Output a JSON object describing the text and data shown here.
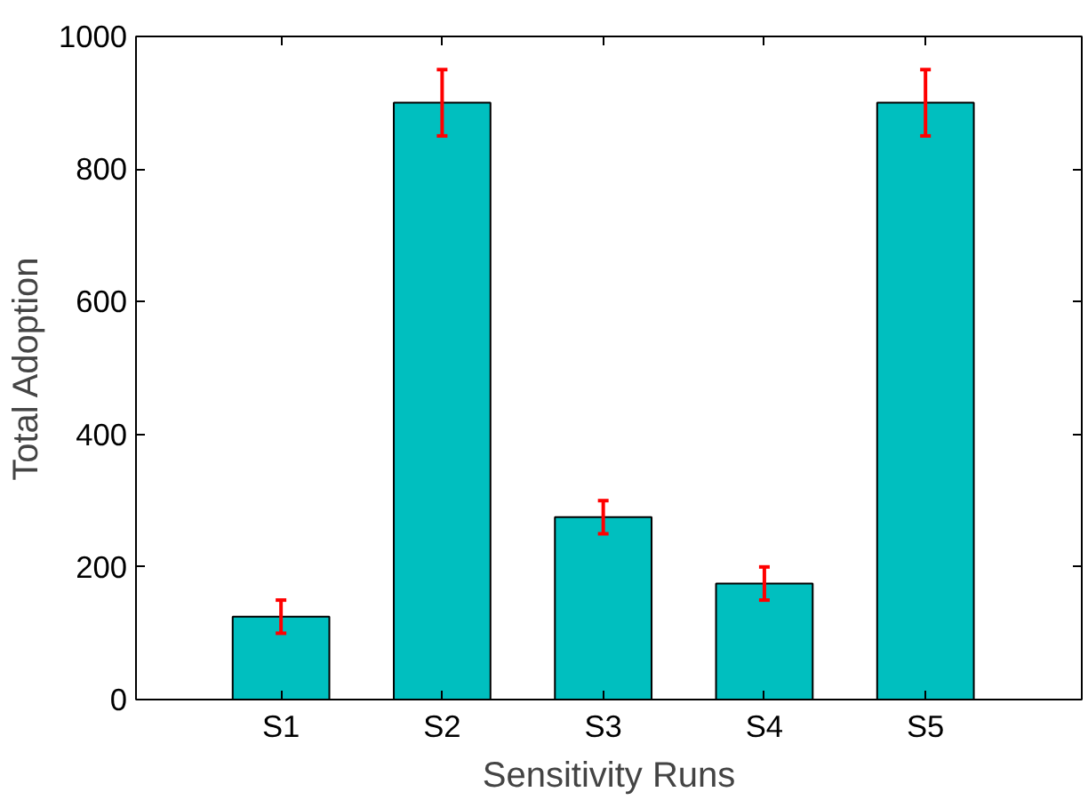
{
  "chart_data": {
    "type": "bar",
    "xlabel": "Sensitivity Runs",
    "ylabel": "Total Adoption",
    "categories": [
      "S1",
      "S2",
      "S3",
      "S4",
      "S5"
    ],
    "values": [
      125,
      900,
      275,
      175,
      900
    ],
    "color": "#00bfbf",
    "errors": [
      25,
      50,
      25,
      25,
      50
    ],
    "ylim": [
      0,
      1000
    ],
    "yticks": [
      0,
      200,
      400,
      600,
      800,
      1000
    ],
    "grid": false
  }
}
